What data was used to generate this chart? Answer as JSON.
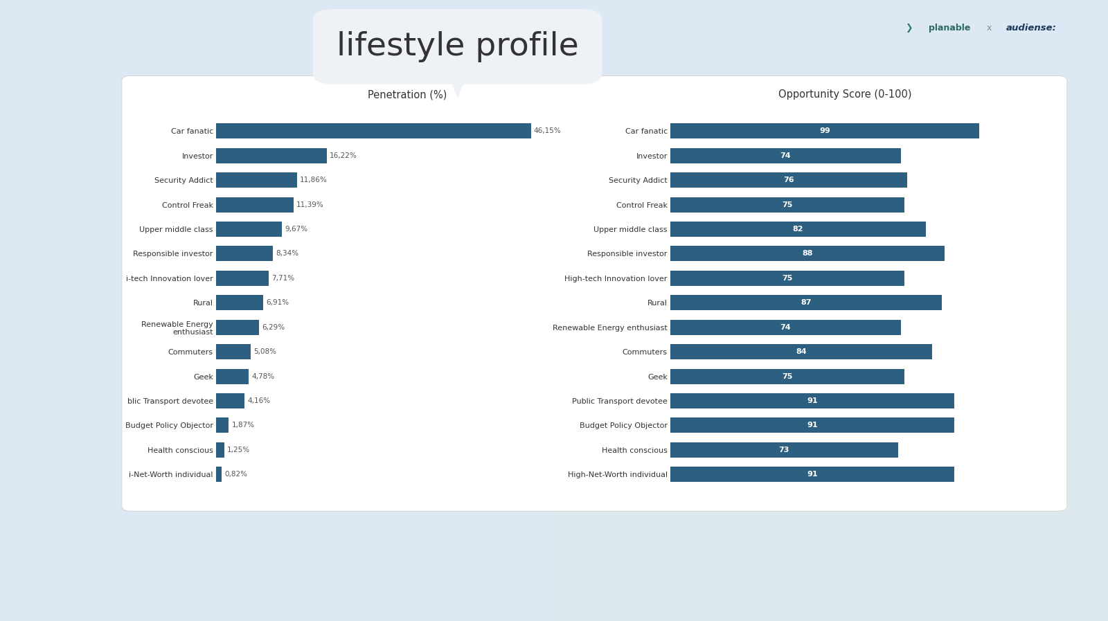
{
  "title": "lifestyle profile",
  "penetration_title": "Penetration (%)",
  "opportunity_title": "Opportunity Score (0-100)",
  "categories": [
    "Car fanatic",
    "Investor",
    "Security Addict",
    "Control Freak",
    "Upper middle class",
    "Responsible investor",
    "i-tech Innovation lover",
    "Rural",
    "Renewable Energy\nenthusiast",
    "Commuters",
    "Geek",
    "blic Transport devotee",
    "Budget Policy Objector",
    "Health conscious",
    "i-Net-Worth individual"
  ],
  "categories_right": [
    "Car fanatic",
    "Investor",
    "Security Addict",
    "Control Freak",
    "Upper middle class",
    "Responsible investor",
    "High-tech Innovation lover",
    "Rural",
    "Renewable Energy enthusiast",
    "Commuters",
    "Geek",
    "Public Transport devotee",
    "Budget Policy Objector",
    "Health conscious",
    "High-Net-Worth individual"
  ],
  "penetration_values": [
    46.15,
    16.22,
    11.86,
    11.39,
    9.67,
    8.34,
    7.71,
    6.91,
    6.29,
    5.08,
    4.78,
    4.16,
    1.87,
    1.25,
    0.82
  ],
  "penetration_labels": [
    "46,15%",
    "16,22%",
    "11,86%",
    "11,39%",
    "9,67%",
    "8,34%",
    "7,71%",
    "6,91%",
    "6,29%",
    "5,08%",
    "4,78%",
    "4,16%",
    "1,87%",
    "1,25%",
    "0,82%"
  ],
  "opportunity_values": [
    99,
    74,
    76,
    75,
    82,
    88,
    75,
    87,
    74,
    84,
    75,
    91,
    91,
    73,
    91
  ],
  "bar_color": "#2d6080",
  "text_color": "#333333",
  "label_color_pen": "#555555",
  "outer_bg_top": "#dce8f5",
  "outer_bg_bottom": "#e8f0f8",
  "card_bg": "#ffffff",
  "title_font_size": 34,
  "chart_title_font_size": 10.5,
  "label_font_size": 8.0,
  "value_font_size": 7.5,
  "opp_value_font_size": 8.0,
  "bubble_color": "#eef1f6",
  "logo_planable": "#2d6080",
  "logo_audiense": "#1a5276"
}
